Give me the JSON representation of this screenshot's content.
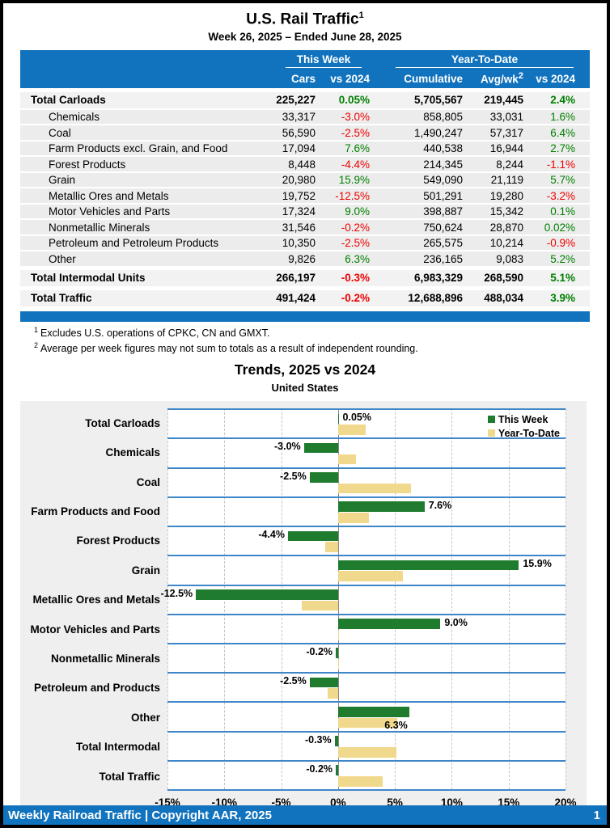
{
  "page": {
    "title": "U.S. Rail Traffic",
    "title_superscript": "1",
    "subtitle": "Week 26, 2025 – Ended June 28, 2025",
    "footer_left": "Weekly Railroad Traffic | Copyright AAR, 2025",
    "footer_page_number": "1"
  },
  "colors": {
    "blue": "#1173BD",
    "positive": "#008000",
    "negative": "#F00000",
    "bar_green": "#1F7B2D",
    "bar_tan": "#F0D98C",
    "band_line": "#3F86C9",
    "chart_bg": "#EFEFEF",
    "row_stripe": "#ECECEC",
    "row_stripe_total": "#F2F2F2"
  },
  "table": {
    "group_headers": {
      "this_week": "This Week",
      "year_to_date": "Year-To-Date"
    },
    "columns": {
      "cars": "Cars",
      "wk_vs": "vs 2024",
      "cumulative": "Cumulative",
      "avg_wk": "Avg/wk",
      "avg_wk_superscript": "2",
      "ytd_vs": "vs 2024"
    },
    "rows": [
      {
        "label": "Total Carloads",
        "total": true,
        "cars": "225,227",
        "wk_vs": "0.05%",
        "cumulative": "5,705,567",
        "avg_wk": "219,445",
        "ytd_vs": "2.4%"
      },
      {
        "label": "Chemicals",
        "total": false,
        "cars": "33,317",
        "wk_vs": "-3.0%",
        "cumulative": "858,805",
        "avg_wk": "33,031",
        "ytd_vs": "1.6%"
      },
      {
        "label": "Coal",
        "total": false,
        "cars": "56,590",
        "wk_vs": "-2.5%",
        "cumulative": "1,490,247",
        "avg_wk": "57,317",
        "ytd_vs": "6.4%"
      },
      {
        "label": "Farm Products excl. Grain, and Food",
        "total": false,
        "cars": "17,094",
        "wk_vs": "7.6%",
        "cumulative": "440,538",
        "avg_wk": "16,944",
        "ytd_vs": "2.7%"
      },
      {
        "label": "Forest Products",
        "total": false,
        "cars": "8,448",
        "wk_vs": "-4.4%",
        "cumulative": "214,345",
        "avg_wk": "8,244",
        "ytd_vs": "-1.1%"
      },
      {
        "label": "Grain",
        "total": false,
        "cars": "20,980",
        "wk_vs": "15.9%",
        "cumulative": "549,090",
        "avg_wk": "21,119",
        "ytd_vs": "5.7%"
      },
      {
        "label": "Metallic Ores and Metals",
        "total": false,
        "cars": "19,752",
        "wk_vs": "-12.5%",
        "cumulative": "501,291",
        "avg_wk": "19,280",
        "ytd_vs": "-3.2%"
      },
      {
        "label": "Motor Vehicles and Parts",
        "total": false,
        "cars": "17,324",
        "wk_vs": "9.0%",
        "cumulative": "398,887",
        "avg_wk": "15,342",
        "ytd_vs": "0.1%"
      },
      {
        "label": "Nonmetallic Minerals",
        "total": false,
        "cars": "31,546",
        "wk_vs": "-0.2%",
        "cumulative": "750,624",
        "avg_wk": "28,870",
        "ytd_vs": "0.02%"
      },
      {
        "label": "Petroleum and Petroleum Products",
        "total": false,
        "cars": "10,350",
        "wk_vs": "-2.5%",
        "cumulative": "265,575",
        "avg_wk": "10,214",
        "ytd_vs": "-0.9%"
      },
      {
        "label": "Other",
        "total": false,
        "cars": "9,826",
        "wk_vs": "6.3%",
        "cumulative": "236,165",
        "avg_wk": "9,083",
        "ytd_vs": "5.2%"
      },
      {
        "label": "Total Intermodal Units",
        "total": true,
        "cars": "266,197",
        "wk_vs": "-0.3%",
        "cumulative": "6,983,329",
        "avg_wk": "268,590",
        "ytd_vs": "5.1%"
      },
      {
        "label": "Total Traffic",
        "total": true,
        "cars": "491,424",
        "wk_vs": "-0.2%",
        "cumulative": "12,688,896",
        "avg_wk": "488,034",
        "ytd_vs": "3.9%"
      }
    ]
  },
  "footnotes": [
    {
      "marker": "1",
      "text": "Excludes U.S. operations of CPKC, CN and GMXT."
    },
    {
      "marker": "2",
      "text": "Average per week figures may not sum to totals as a result of independent rounding."
    }
  ],
  "chart_data": {
    "type": "bar",
    "orientation": "horizontal",
    "title": "Trends, 2025 vs 2024",
    "subtitle": "United States",
    "categories": [
      "Total Carloads",
      "Chemicals",
      "Coal",
      "Farm Products and Food",
      "Forest Products",
      "Grain",
      "Metallic Ores and Metals",
      "Motor Vehicles and Parts",
      "Nonmetallic Minerals",
      "Petroleum and Products",
      "Other",
      "Total Intermodal",
      "Total Traffic"
    ],
    "series": [
      {
        "name": "This Week",
        "color": "#1F7B2D",
        "values": [
          0.05,
          -3.0,
          -2.5,
          7.6,
          -4.4,
          15.9,
          -12.5,
          9.0,
          -0.2,
          -2.5,
          6.3,
          -0.3,
          -0.2
        ]
      },
      {
        "name": "Year-To-Date",
        "color": "#F0D98C",
        "values": [
          2.4,
          1.6,
          6.4,
          2.7,
          -1.1,
          5.7,
          -3.2,
          0.1,
          0.02,
          -0.9,
          5.2,
          5.1,
          3.9
        ]
      }
    ],
    "bar_labels": [
      "0.05%",
      "-3.0%",
      "-2.5%",
      "7.6%",
      "-4.4%",
      "15.9%",
      "-12.5%",
      "9.0%",
      "-0.2%",
      "-2.5%",
      "6.3%",
      "-0.3%",
      "-0.2%"
    ],
    "label_placement": [
      "end",
      "start",
      "start",
      "end",
      "start",
      "end",
      "start",
      "end",
      "start",
      "start",
      "below",
      "start",
      "start"
    ],
    "xlim": [
      -15,
      20
    ],
    "x_tick_values": [
      -15,
      -10,
      -5,
      0,
      5,
      10,
      15,
      20
    ],
    "x_tick_labels": [
      "-15%",
      "-10%",
      "-5%",
      "0%",
      "5%",
      "10%",
      "15%",
      "20%"
    ],
    "grid": true,
    "legend_position": "top-right"
  }
}
